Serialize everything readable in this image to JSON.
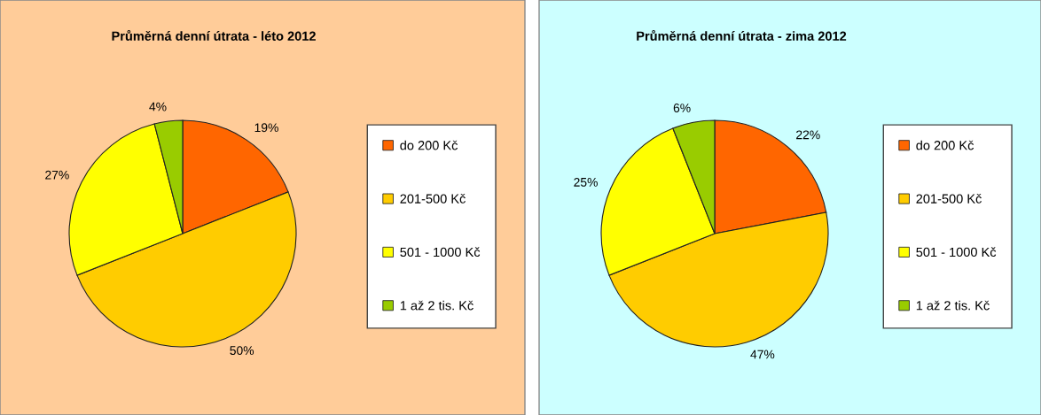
{
  "chart_data": [
    {
      "type": "pie",
      "title": "Průměrná denní útrata - léto 2012",
      "categories": [
        "do 200 Kč",
        "201-500 Kč",
        "501 - 1000 Kč",
        "1 až 2 tis. Kč"
      ],
      "values": [
        19,
        50,
        27,
        4
      ],
      "value_labels": [
        "19%",
        "50%",
        "27%",
        "4%"
      ],
      "colors": [
        "#ff6600",
        "#ffcc00",
        "#ffff00",
        "#99cc00"
      ],
      "legend": "right"
    },
    {
      "type": "pie",
      "title": "Průměrná denní útrata - zima 2012",
      "categories": [
        "do 200 Kč",
        "201-500 Kč",
        "501 - 1000 Kč",
        "1 až 2 tis. Kč"
      ],
      "values": [
        22,
        47,
        25,
        6
      ],
      "value_labels": [
        "22%",
        "47%",
        "25%",
        "6%"
      ],
      "colors": [
        "#ff6600",
        "#ffcc00",
        "#ffff00",
        "#99cc00"
      ],
      "legend": "right"
    }
  ]
}
